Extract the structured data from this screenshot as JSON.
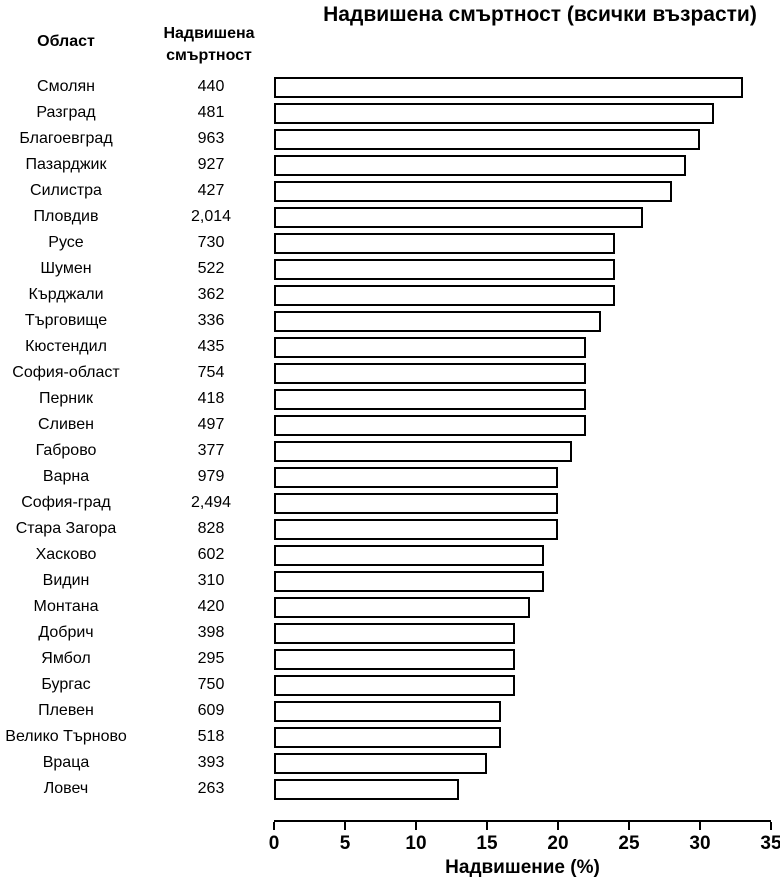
{
  "title": "Надвишена смъртност (всички възрасти)",
  "table": {
    "region_header": "Област",
    "value_header": "Надвишена смъртност"
  },
  "axis": {
    "label": "Надвишение (%)",
    "ticks": [
      "0",
      "5",
      "10",
      "15",
      "20",
      "25",
      "30",
      "35"
    ]
  },
  "colors": {
    "bar_fill": "#ffffff",
    "bar_border": "#000000",
    "text": "#000000",
    "background": "#ffffff"
  },
  "chart_data": {
    "type": "bar",
    "orientation": "horizontal",
    "title": "Надвишена смъртност (всички възрасти)",
    "xlabel": "Надвишение (%)",
    "xlim": [
      0,
      35
    ],
    "grid": false,
    "legend": false,
    "categories": [
      "Смолян",
      "Разград",
      "Благоевград",
      "Пазарджик",
      "Силистра",
      "Пловдив",
      "Русе",
      "Шумен",
      "Кърджали",
      "Търговище",
      "Кюстендил",
      "София-област",
      "Перник",
      "Сливен",
      "Габрово",
      "Варна",
      "София-град",
      "Стара Загора",
      "Хасково",
      "Видин",
      "Монтана",
      "Добрич",
      "Ямбол",
      "Бургас",
      "Плевен",
      "Велико Търново",
      "Враца",
      "Ловеч"
    ],
    "excess_deaths": [
      "440",
      "481",
      "963",
      "927",
      "427",
      "2,014",
      "730",
      "522",
      "362",
      "336",
      "435",
      "754",
      "418",
      "497",
      "377",
      "979",
      "2,494",
      "828",
      "602",
      "310",
      "420",
      "398",
      "295",
      "750",
      "609",
      "518",
      "393",
      "263"
    ],
    "values_percent": [
      33,
      31,
      30,
      29,
      28,
      26,
      24,
      24,
      24,
      23,
      22,
      22,
      22,
      22,
      21,
      20,
      20,
      20,
      19,
      19,
      18,
      17,
      17,
      17,
      16,
      16,
      15,
      13
    ]
  }
}
